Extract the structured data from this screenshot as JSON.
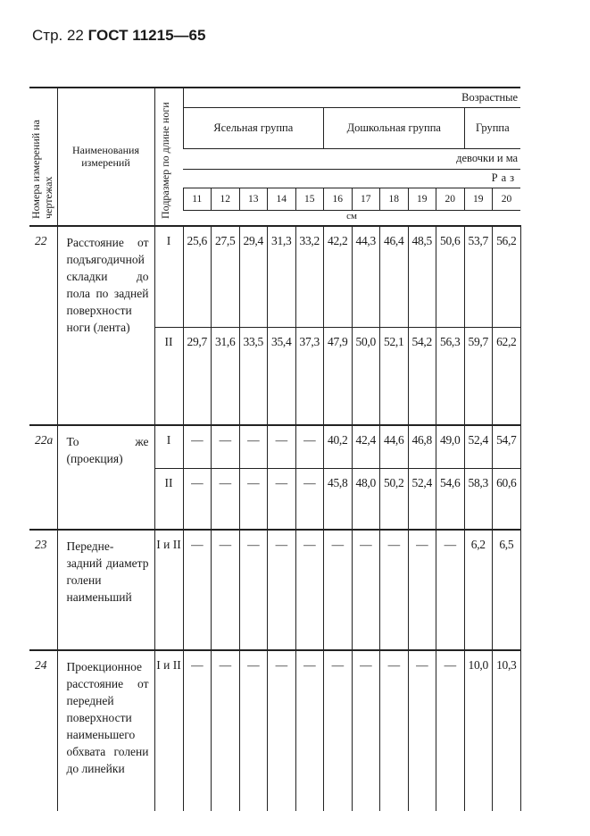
{
  "running_head": {
    "page": "Стр. 22",
    "standard": "ГОСТ 11215—65"
  },
  "header": {
    "col_number": "Номера измерений на чертежах",
    "col_name": "Наименования измерений",
    "col_subsize": "Подразмер по длине ноги",
    "age_label": "Возрастные",
    "groups": [
      "Ясельная группа",
      "Дошкольная группа",
      "Группа"
    ],
    "gender": "девочки и ма",
    "size_label": "Раз",
    "sizes": [
      "11",
      "12",
      "13",
      "14",
      "15",
      "16",
      "17",
      "18",
      "19",
      "20",
      "19",
      "20"
    ],
    "unit": "см"
  },
  "rows": [
    {
      "number": "22",
      "name": "Расстояние от подъягодичной складки до пола по задней поверхности ноги (лента)",
      "subs": [
        {
          "sub": "I",
          "values": [
            "25,6",
            "27,5",
            "29,4",
            "31,3",
            "33,2",
            "42,2",
            "44,3",
            "46,4",
            "48,5",
            "50,6",
            "53,7",
            "56,2"
          ]
        },
        {
          "sub": "II",
          "values": [
            "29,7",
            "31,6",
            "33,5",
            "35,4",
            "37,3",
            "47,9",
            "50,0",
            "52,1",
            "54,2",
            "56,3",
            "59,7",
            "62,2"
          ]
        }
      ]
    },
    {
      "number": "22а",
      "name": "То же (проекция)",
      "subs": [
        {
          "sub": "I",
          "values": [
            "—",
            "—",
            "—",
            "—",
            "—",
            "40,2",
            "42,4",
            "44,6",
            "46,8",
            "49,0",
            "52,4",
            "54,7"
          ]
        },
        {
          "sub": "II",
          "values": [
            "—",
            "—",
            "—",
            "—",
            "—",
            "45,8",
            "48,0",
            "50,2",
            "52,4",
            "54,6",
            "58,3",
            "60,6"
          ]
        }
      ]
    },
    {
      "number": "23",
      "name": "Передне-задний диаметр голени наименьший",
      "subs": [
        {
          "sub": "I и II",
          "values": [
            "—",
            "—",
            "—",
            "—",
            "—",
            "—",
            "—",
            "—",
            "—",
            "—",
            "6,2",
            "6,5"
          ]
        }
      ]
    },
    {
      "number": "24",
      "name": "Проекционное расстояние от передней поверхности наименьшего обхвата голени до линейки",
      "subs": [
        {
          "sub": "I и II",
          "values": [
            "—",
            "—",
            "—",
            "—",
            "—",
            "—",
            "—",
            "—",
            "—",
            "—",
            "10,0",
            "10,3"
          ]
        }
      ]
    }
  ]
}
